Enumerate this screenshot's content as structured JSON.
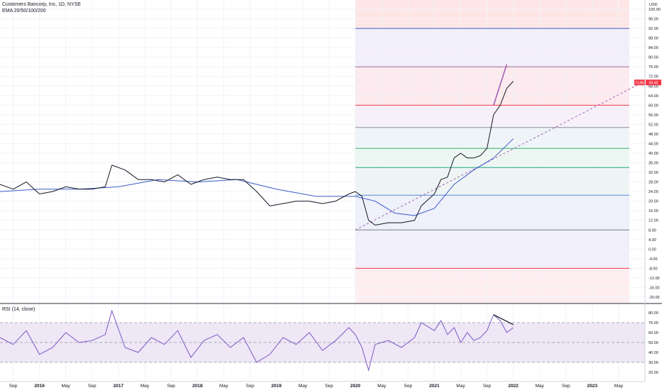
{
  "header": {
    "title": "Customers Bancorp, Inc, 1D, NYSE",
    "indicator": "EMA 20/50/100/200"
  },
  "rsi_header": "RSI (14, close)",
  "currency": "USD",
  "colors": {
    "price": "#131722",
    "ema20": "#f23645",
    "ema50": "#ff9b9b",
    "ema100": "#7fd6d1",
    "ema200": "#3b5bc7",
    "rsi": "#7e57c2",
    "rsi_band": "#ede7f6",
    "trendline": "#a05eb5",
    "fib_top": "#ffe6e6",
    "fib_bottom": "#ffeef0",
    "grid": "#f0f3fa",
    "price_tag": "#f23645"
  },
  "price_tag": {
    "symbol": "CUBI",
    "value": "69.48"
  },
  "chart_data": [
    {
      "type": "line",
      "title": "Customers Bancorp, Inc, 1D, NYSE",
      "ylabel": "USD",
      "ylim": [
        -20,
        100
      ],
      "y_ticks": [
        "100.00",
        "96.00",
        "92.00",
        "88.00",
        "84.00",
        "80.00",
        "76.00",
        "72.00",
        "68.00",
        "64.00",
        "60.00",
        "56.00",
        "52.00",
        "48.00",
        "44.00",
        "40.00",
        "36.00",
        "32.00",
        "28.00",
        "24.00",
        "20.00",
        "16.00",
        "12.00",
        "8.00",
        "4.00",
        "0.00",
        "-4.00",
        "-8.00",
        "-12.00",
        "-16.00",
        "-20.00"
      ],
      "x_ticks": [
        "Sep",
        "2016",
        "May",
        "Sep",
        "2017",
        "May",
        "Sep",
        "2018",
        "May",
        "Sep",
        "2019",
        "May",
        "Sep",
        "2020",
        "May",
        "Sep",
        "2021",
        "May",
        "Sep",
        "2022",
        "May",
        "Sep",
        "2023",
        "May"
      ],
      "x_ticks_bold": [
        "2016",
        "2017",
        "2018",
        "2019",
        "2020",
        "2021",
        "2022",
        "2023"
      ],
      "xlim": [
        "2015-07",
        "2023-09"
      ],
      "fib_levels": [
        92,
        76,
        60,
        50.7,
        42,
        34,
        22.5,
        8,
        -8
      ],
      "series": [
        {
          "name": "Price",
          "x": [
            "2015-07",
            "2015-09",
            "2015-11",
            "2016-01",
            "2016-03",
            "2016-05",
            "2016-07",
            "2016-09",
            "2016-11",
            "2016-12",
            "2017-02",
            "2017-04",
            "2017-06",
            "2017-08",
            "2017-10",
            "2017-12",
            "2018-02",
            "2018-04",
            "2018-06",
            "2018-08",
            "2018-10",
            "2018-12",
            "2019-02",
            "2019-04",
            "2019-06",
            "2019-08",
            "2019-10",
            "2019-12",
            "2020-01",
            "2020-02",
            "2020-03",
            "2020-04",
            "2020-06",
            "2020-08",
            "2020-10",
            "2020-11",
            "2021-01",
            "2021-02",
            "2021-03",
            "2021-04",
            "2021-05",
            "2021-06",
            "2021-07",
            "2021-08",
            "2021-09",
            "2021-10",
            "2021-11",
            "2021-12",
            "2022-01"
          ],
          "values": [
            27,
            25,
            28,
            23,
            24,
            26,
            25,
            25,
            26,
            35,
            33,
            29,
            29,
            28,
            31,
            27,
            29,
            30,
            29,
            29,
            24,
            18,
            19,
            20,
            20,
            19,
            20,
            23,
            24,
            22,
            12,
            10,
            11,
            11,
            12,
            18,
            23,
            29,
            30,
            38,
            40,
            38,
            38,
            39,
            42,
            56,
            60,
            67,
            70
          ]
        },
        {
          "name": "EMA 200",
          "x": [
            "2015-07",
            "2016-01",
            "2016-07",
            "2017-01",
            "2017-07",
            "2018-01",
            "2018-07",
            "2019-01",
            "2019-07",
            "2020-01",
            "2020-04",
            "2020-07",
            "2020-10",
            "2021-01",
            "2021-04",
            "2021-07",
            "2021-10",
            "2022-01"
          ],
          "values": [
            24,
            25,
            25,
            26,
            29,
            28,
            29,
            25,
            22,
            22,
            20,
            15,
            14,
            17,
            27,
            33,
            38,
            46
          ]
        }
      ]
    },
    {
      "type": "line",
      "title": "RSI (14, close)",
      "ylim": [
        20,
        85
      ],
      "y_ticks": [
        "80.00",
        "70.00",
        "60.00",
        "50.00",
        "40.00",
        "30.00",
        "20.00"
      ],
      "bands": [
        30,
        50,
        70
      ],
      "series": [
        {
          "name": "RSI (14, close)",
          "x": [
            "2015-07",
            "2015-09",
            "2015-11",
            "2016-01",
            "2016-03",
            "2016-05",
            "2016-07",
            "2016-09",
            "2016-11",
            "2016-12",
            "2017-02",
            "2017-04",
            "2017-06",
            "2017-08",
            "2017-10",
            "2017-12",
            "2018-02",
            "2018-04",
            "2018-06",
            "2018-08",
            "2018-10",
            "2018-12",
            "2019-02",
            "2019-04",
            "2019-06",
            "2019-08",
            "2019-10",
            "2019-12",
            "2020-01",
            "2020-02",
            "2020-03",
            "2020-04",
            "2020-06",
            "2020-08",
            "2020-10",
            "2020-11",
            "2021-01",
            "2021-02",
            "2021-03",
            "2021-04",
            "2021-05",
            "2021-06",
            "2021-07",
            "2021-08",
            "2021-09",
            "2021-10",
            "2021-11",
            "2021-12",
            "2022-01"
          ],
          "values": [
            55,
            48,
            62,
            38,
            45,
            60,
            50,
            52,
            58,
            82,
            45,
            40,
            55,
            48,
            62,
            35,
            52,
            58,
            45,
            55,
            30,
            38,
            55,
            48,
            60,
            42,
            52,
            65,
            58,
            45,
            22,
            48,
            52,
            45,
            55,
            70,
            62,
            72,
            58,
            65,
            50,
            60,
            52,
            55,
            62,
            78,
            72,
            60,
            65
          ]
        }
      ]
    }
  ]
}
